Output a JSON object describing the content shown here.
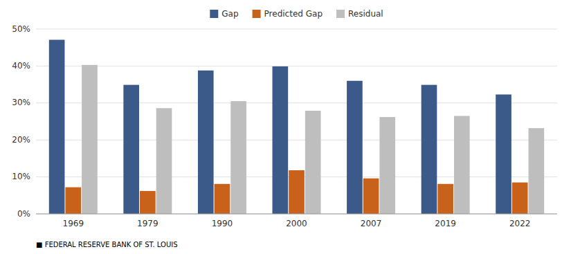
{
  "chart_data": {
    "type": "bar",
    "categories": [
      "1969",
      "1979",
      "1990",
      "2000",
      "2007",
      "2019",
      "2022"
    ],
    "series": [
      {
        "name": "Gap",
        "color": "#3B5A8A",
        "values": [
          0.471,
          0.349,
          0.388,
          0.399,
          0.36,
          0.349,
          0.323
        ]
      },
      {
        "name": "Predicted Gap",
        "color": "#C8621A",
        "values": [
          0.072,
          0.062,
          0.081,
          0.118,
          0.096,
          0.081,
          0.085
        ]
      },
      {
        "name": "Residual",
        "color": "#BEBEBE",
        "values": [
          0.403,
          0.286,
          0.305,
          0.279,
          0.262,
          0.265,
          0.232
        ]
      }
    ],
    "ylim": [
      0,
      0.5
    ],
    "yticks": [
      {
        "value": 0.0,
        "label": "0%"
      },
      {
        "value": 0.1,
        "label": "10%"
      },
      {
        "value": 0.2,
        "label": "20%"
      },
      {
        "value": 0.3,
        "label": "30%"
      },
      {
        "value": 0.4,
        "label": "40%"
      },
      {
        "value": 0.5,
        "label": "50%"
      }
    ],
    "grid": true,
    "legend": "top",
    "annotations": [
      "■  FEDERAL RESERVE BANK OF ST. LOUIS"
    ]
  }
}
